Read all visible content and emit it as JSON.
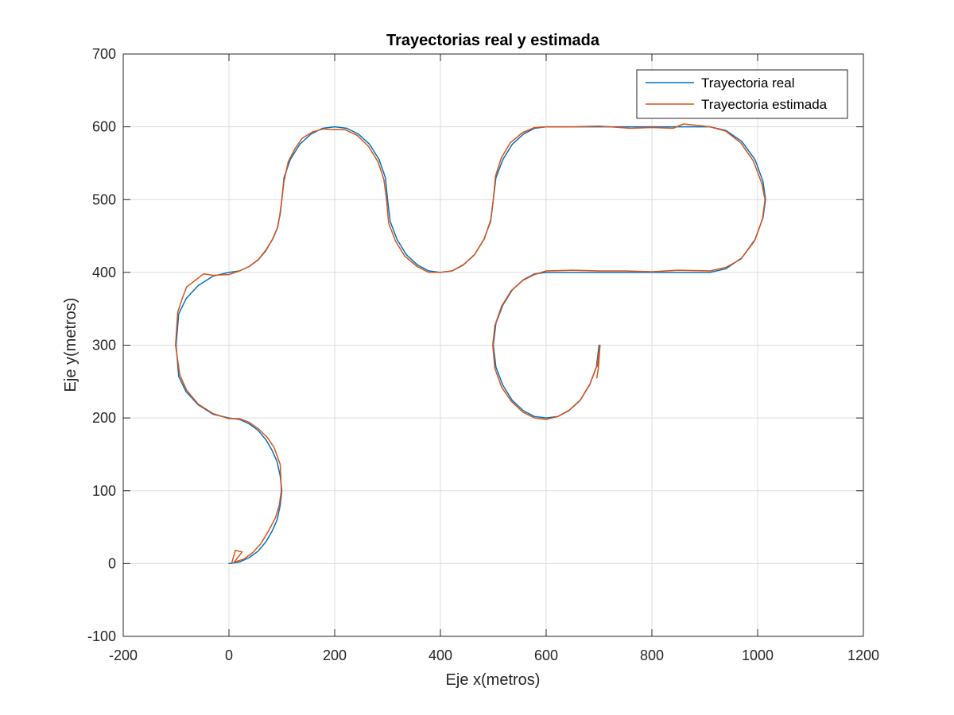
{
  "chart_data": {
    "type": "line",
    "title": "Trayectorias real y estimada",
    "xlabel": "Eje x(metros)",
    "ylabel": "Eje y(metros)",
    "xlim": [
      -200,
      1200
    ],
    "ylim": [
      -100,
      700
    ],
    "xticks": [
      -200,
      0,
      200,
      400,
      600,
      800,
      1000,
      1200
    ],
    "yticks": [
      -100,
      0,
      100,
      200,
      300,
      400,
      500,
      600,
      700
    ],
    "grid": true,
    "legend_position": "top-right",
    "series": [
      {
        "name": "Trayectoria real",
        "color": "#0072BD",
        "x": [
          0,
          20,
          38,
          55,
          70,
          82,
          91,
          97,
          100,
          97,
          91,
          82,
          70,
          55,
          38,
          20,
          0,
          -30,
          -58,
          -81,
          -95,
          -100,
          -95,
          -81,
          -58,
          -30,
          0,
          20,
          38,
          55,
          70,
          82,
          91,
          97,
          100,
          104,
          116,
          134,
          155,
          177,
          200,
          223,
          245,
          266,
          284,
          296,
          300,
          305,
          318,
          336,
          357,
          378,
          400,
          422,
          443,
          464,
          482,
          495,
          500,
          505,
          518,
          536,
          557,
          578,
          600,
          700,
          800,
          910,
          940,
          970,
          995,
          1010,
          1015,
          1010,
          995,
          970,
          940,
          910,
          800,
          700,
          600,
          578,
          557,
          536,
          518,
          505,
          500,
          505,
          518,
          536,
          557,
          578,
          600,
          622,
          643,
          664,
          682,
          695,
          700,
          698
        ],
        "y": [
          0,
          2,
          8,
          17,
          30,
          45,
          60,
          80,
          100,
          120,
          140,
          155,
          170,
          183,
          192,
          198,
          200,
          205,
          218,
          236,
          257,
          300,
          343,
          364,
          382,
          395,
          400,
          402,
          408,
          417,
          430,
          445,
          460,
          480,
          500,
          530,
          555,
          576,
          590,
          598,
          600,
          598,
          590,
          576,
          555,
          530,
          500,
          470,
          445,
          424,
          410,
          402,
          400,
          402,
          410,
          424,
          445,
          470,
          500,
          530,
          555,
          576,
          590,
          598,
          600,
          600,
          600,
          600,
          595,
          580,
          555,
          525,
          500,
          475,
          445,
          420,
          405,
          400,
          400,
          400,
          400,
          398,
          390,
          376,
          355,
          330,
          300,
          270,
          245,
          224,
          210,
          202,
          200,
          202,
          210,
          224,
          245,
          270,
          300,
          270
        ]
      },
      {
        "name": "Trayectoria estimada",
        "color": "#D95319",
        "x": [
          5,
          12,
          25,
          10,
          28,
          45,
          60,
          75,
          88,
          95,
          99,
          98,
          97,
          90,
          85,
          73,
          56,
          38,
          20,
          0,
          -30,
          -58,
          -80,
          -93,
          -101,
          -97,
          -88,
          -80,
          -62,
          -48,
          -30,
          0,
          20,
          38,
          56,
          70,
          83,
          92,
          96,
          100,
          104,
          112,
          125,
          138,
          158,
          178,
          200,
          220,
          243,
          264,
          282,
          293,
          298,
          302,
          315,
          333,
          356,
          378,
          400,
          422,
          444,
          465,
          483,
          495,
          500,
          504,
          515,
          532,
          555,
          578,
          600,
          650,
          700,
          760,
          800,
          840,
          860,
          910,
          940,
          968,
          992,
          1008,
          1014,
          1009,
          994,
          968,
          940,
          910,
          850,
          800,
          750,
          700,
          650,
          600,
          578,
          556,
          534,
          516,
          503,
          499,
          503,
          516,
          534,
          556,
          578,
          600,
          622,
          644,
          665,
          683,
          696,
          702,
          699,
          696
        ],
        "y": [
          0,
          18,
          16,
          2,
          6,
          15,
          27,
          45,
          63,
          80,
          100,
          120,
          136,
          150,
          160,
          173,
          185,
          194,
          199,
          199,
          206,
          219,
          238,
          259,
          300,
          345,
          365,
          380,
          390,
          398,
          396,
          397,
          402,
          408,
          418,
          431,
          446,
          462,
          478,
          500,
          525,
          552,
          570,
          584,
          593,
          597,
          596,
          596,
          588,
          573,
          552,
          528,
          500,
          468,
          443,
          422,
          408,
          400,
          400,
          402,
          411,
          425,
          446,
          472,
          500,
          532,
          557,
          578,
          592,
          599,
          600,
          600,
          601,
          598,
          599,
          598,
          604,
          600,
          594,
          578,
          553,
          522,
          500,
          473,
          443,
          418,
          407,
          402,
          403,
          401,
          402,
          402,
          403,
          402,
          397,
          389,
          375,
          354,
          327,
          300,
          268,
          242,
          223,
          208,
          200,
          198,
          202,
          211,
          225,
          247,
          272,
          300,
          270,
          255
        ]
      }
    ]
  }
}
